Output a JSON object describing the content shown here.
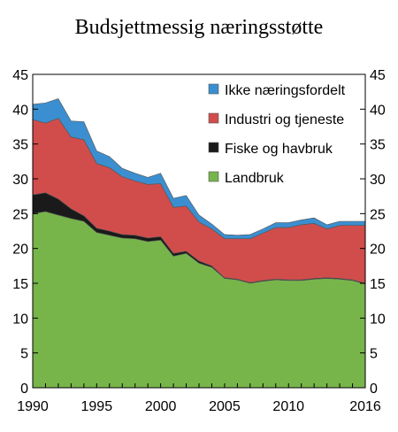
{
  "chart_data": {
    "type": "area",
    "title": "Budsjettmessig næringsstøtte",
    "xlabel": "",
    "ylabel": "",
    "ylim": [
      0,
      45
    ],
    "xlim": [
      1990,
      2016
    ],
    "y_ticks": [
      "0",
      "5",
      "10",
      "15",
      "20",
      "25",
      "30",
      "35",
      "40",
      "45"
    ],
    "x_ticks": [
      "1990",
      "1995",
      "2000",
      "2005",
      "2010",
      "2016"
    ],
    "stacked": true,
    "grid": false,
    "right_axis_mirrored": true,
    "legend_position": "top-right",
    "x": [
      1990,
      1991,
      1992,
      1993,
      1994,
      1995,
      1996,
      1997,
      1998,
      1999,
      2000,
      2001,
      2002,
      2003,
      2004,
      2005,
      2006,
      2007,
      2008,
      2009,
      2010,
      2011,
      2012,
      2013,
      2014,
      2015,
      2016
    ],
    "series": [
      {
        "name": "Landbruk",
        "color": "#77b54b",
        "values": [
          25.0,
          25.3,
          24.8,
          24.3,
          23.9,
          22.3,
          21.9,
          21.5,
          21.4,
          21.0,
          21.2,
          18.9,
          19.3,
          17.9,
          17.3,
          15.7,
          15.5,
          15.0,
          15.3,
          15.5,
          15.4,
          15.4,
          15.6,
          15.7,
          15.6,
          15.4,
          14.9
        ]
      },
      {
        "name": "Fiske og havbruk",
        "color": "#1a1a1a",
        "values": [
          2.7,
          2.7,
          2.3,
          1.4,
          0.8,
          0.6,
          0.6,
          0.5,
          0.5,
          0.5,
          0.5,
          0.4,
          0.3,
          0.3,
          0.2,
          0.1,
          0.1,
          0.1,
          0.1,
          0.1,
          0.1,
          0.1,
          0.1,
          0.1,
          0.1,
          0.1,
          0.1
        ]
      },
      {
        "name": "Industri og tjeneste",
        "color": "#d14d4b",
        "values": [
          10.8,
          10.0,
          11.6,
          10.3,
          10.9,
          9.3,
          9.1,
          8.3,
          7.8,
          7.7,
          7.6,
          6.6,
          6.5,
          5.6,
          5.3,
          5.6,
          5.8,
          6.3,
          6.8,
          7.4,
          7.5,
          7.9,
          7.9,
          7.0,
          7.6,
          7.8,
          8.3
        ]
      },
      {
        "name": "Ikke næringsfordelt",
        "color": "#3b8fd0",
        "values": [
          2.2,
          2.9,
          2.8,
          2.3,
          2.6,
          1.8,
          1.6,
          1.2,
          1.1,
          1.0,
          1.5,
          1.3,
          1.5,
          1.0,
          0.7,
          0.6,
          0.5,
          0.6,
          0.6,
          0.7,
          0.7,
          0.7,
          0.8,
          0.6,
          0.6,
          0.6,
          0.6
        ]
      }
    ],
    "legend_order": [
      "Ikke næringsfordelt",
      "Industri og tjeneste",
      "Fiske og havbruk",
      "Landbruk"
    ]
  }
}
